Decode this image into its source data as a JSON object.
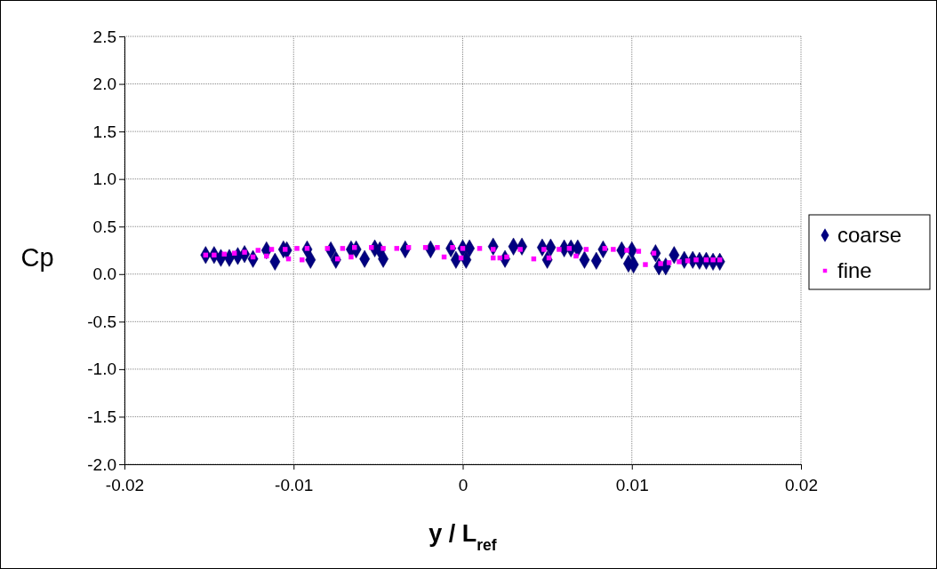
{
  "chart_data": {
    "type": "scatter",
    "xlabel": "y / L$_{ref}$",
    "ylabel": "Cp",
    "xlim": [
      -0.02,
      0.02
    ],
    "xticks": [
      -0.02,
      -0.01,
      0,
      0.01,
      0.02
    ],
    "ylim": [
      -2,
      2.5
    ],
    "yticks": [
      {
        "value": -2,
        "label": "-2.0"
      },
      {
        "value": -1.5,
        "label": "-1.5"
      },
      {
        "value": -1,
        "label": "-1.0"
      },
      {
        "value": -0.5,
        "label": "-0.5"
      },
      {
        "value": 0,
        "label": "0.0"
      },
      {
        "value": 0.5,
        "label": "0.5"
      },
      {
        "value": 1,
        "label": "1.0"
      },
      {
        "value": 1.5,
        "label": "1.5"
      },
      {
        "value": 2,
        "label": "2.0"
      },
      {
        "value": 2.5,
        "label": "2.5"
      }
    ],
    "grid": true,
    "legend": "right",
    "series": [
      {
        "name": "coarse",
        "color": "#000080",
        "marker": "diamond",
        "x": [
          -0.0152,
          -0.0147,
          -0.0143,
          -0.0138,
          -0.0133,
          -0.0129,
          -0.0124,
          -0.0116,
          -0.0111,
          -0.0106,
          -0.0104,
          -0.0092,
          -0.009,
          -0.0078,
          -0.0075,
          -0.0066,
          -0.0063,
          -0.0058,
          -0.0052,
          -0.0049,
          -0.0047,
          -0.0034,
          -0.0019,
          -0.0007,
          0,
          0.0004,
          -0.0004,
          0.0002,
          0.0018,
          0.0025,
          0.003,
          0.0035,
          0.0047,
          0.005,
          0.0052,
          0.006,
          0.0064,
          0.0068,
          0.0072,
          0.0083,
          0.0079,
          0.0094,
          0.0098,
          0.01,
          0.0101,
          0.0114,
          0.0116,
          0.012,
          0.0125,
          0.0131,
          0.0136,
          0.014,
          0.0144,
          0.0148,
          0.0152
        ],
        "values": [
          0.2,
          0.2,
          0.17,
          0.17,
          0.19,
          0.21,
          0.16,
          0.25,
          0.13,
          0.26,
          0.25,
          0.26,
          0.15,
          0.25,
          0.15,
          0.26,
          0.26,
          0.16,
          0.27,
          0.25,
          0.16,
          0.26,
          0.26,
          0.27,
          0.27,
          0.27,
          0.15,
          0.15,
          0.29,
          0.16,
          0.29,
          0.29,
          0.28,
          0.15,
          0.28,
          0.27,
          0.27,
          0.27,
          0.15,
          0.26,
          0.14,
          0.25,
          0.11,
          0.25,
          0.1,
          0.22,
          0.08,
          0.08,
          0.2,
          0.15,
          0.15,
          0.14,
          0.14,
          0.13,
          0.13
        ]
      },
      {
        "name": "fine",
        "color": "#ff00ff",
        "marker": "square",
        "x": [
          -0.0152,
          -0.0147,
          -0.0141,
          -0.0135,
          -0.0129,
          -0.0121,
          -0.0113,
          -0.0105,
          -0.0098,
          -0.0092,
          -0.0124,
          -0.0116,
          -0.0103,
          -0.0095,
          -0.008,
          -0.0071,
          -0.0074,
          -0.0066,
          -0.0064,
          -0.0054,
          -0.0047,
          -0.0039,
          -0.0032,
          -0.0022,
          -0.0015,
          -0.0006,
          0,
          -0.0011,
          -0.0001,
          0.001,
          0.0018,
          0.0018,
          0.0022,
          0.0026,
          0.0034,
          0.0042,
          0.0048,
          0.0051,
          0.0057,
          0.0063,
          0.0067,
          0.0073,
          0.0084,
          0.0089,
          0.0097,
          0.0104,
          0.0113,
          0.0108,
          0.0117,
          0.0122,
          0.0128,
          0.0133,
          0.0138,
          0.0144,
          0.0148,
          0.0152
        ],
        "values": [
          0.2,
          0.2,
          0.21,
          0.22,
          0.23,
          0.25,
          0.26,
          0.26,
          0.27,
          0.27,
          0.18,
          0.19,
          0.16,
          0.15,
          0.27,
          0.27,
          0.16,
          0.18,
          0.28,
          0.28,
          0.27,
          0.27,
          0.28,
          0.28,
          0.28,
          0.28,
          0.27,
          0.18,
          0.17,
          0.27,
          0.26,
          0.17,
          0.17,
          0.18,
          0.26,
          0.16,
          0.26,
          0.17,
          0.26,
          0.27,
          0.19,
          0.26,
          0.27,
          0.26,
          0.25,
          0.24,
          0.22,
          0.1,
          0.11,
          0.12,
          0.13,
          0.14,
          0.15,
          0.15,
          0.15,
          0.15
        ]
      }
    ]
  }
}
